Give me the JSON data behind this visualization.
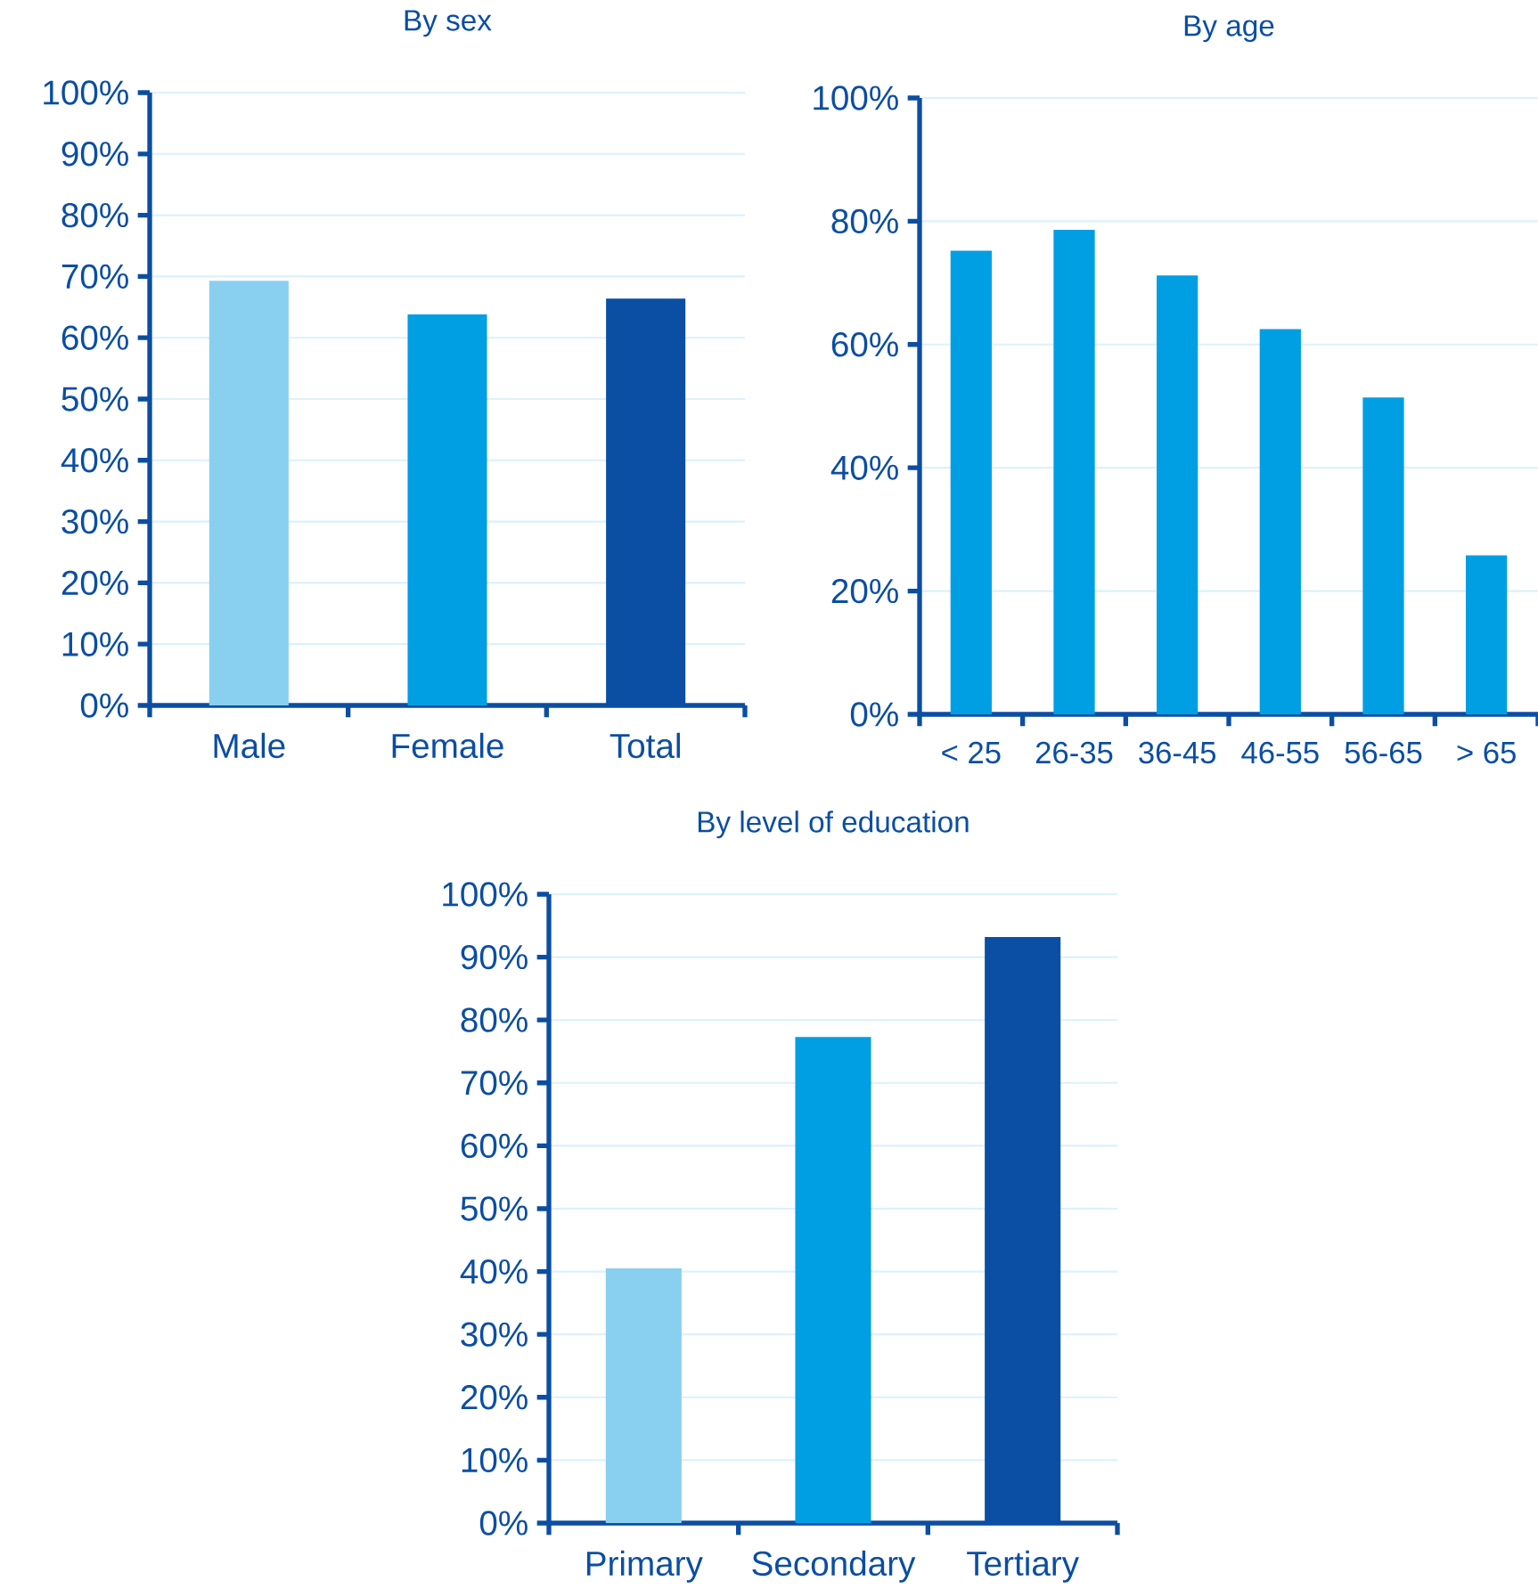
{
  "chart_data": [
    {
      "type": "bar",
      "title": "By sex",
      "categories": [
        "Male",
        "Female",
        "Total"
      ],
      "values": [
        69.3,
        63.8,
        66.4
      ],
      "colors": [
        "#89cff0",
        "#009fe3",
        "#0a4fa3"
      ],
      "ylim": [
        0,
        100
      ],
      "yticks": [
        {
          "value": 0,
          "label": "0%"
        },
        {
          "value": 10,
          "label": "10%"
        },
        {
          "value": 20,
          "label": "20%"
        },
        {
          "value": 30,
          "label": "30%"
        },
        {
          "value": 40,
          "label": "40%"
        },
        {
          "value": 50,
          "label": "50%"
        },
        {
          "value": 60,
          "label": "60%"
        },
        {
          "value": 70,
          "label": "70%"
        },
        {
          "value": 80,
          "label": "80%"
        },
        {
          "value": 90,
          "label": "90%"
        },
        {
          "value": 100,
          "label": "100%"
        }
      ],
      "grid": "y"
    },
    {
      "type": "bar",
      "title": "By age",
      "categories": [
        "< 25",
        "26-35",
        "36-45",
        "46-55",
        "56-65",
        "> 65"
      ],
      "values": [
        75.2,
        78.6,
        71.2,
        62.5,
        51.4,
        25.8
      ],
      "color": "#009fe3",
      "ylim": [
        0,
        100
      ],
      "yticks": [
        {
          "value": 0,
          "label": "0%"
        },
        {
          "value": 20,
          "label": "20%"
        },
        {
          "value": 40,
          "label": "40%"
        },
        {
          "value": 60,
          "label": "60%"
        },
        {
          "value": 80,
          "label": "80%"
        },
        {
          "value": 100,
          "label": "100%"
        }
      ],
      "grid": "y"
    },
    {
      "type": "bar",
      "title": "By level of education",
      "categories": [
        "Primary",
        "Secondary",
        "Tertiary"
      ],
      "values": [
        40.5,
        77.3,
        93.2
      ],
      "colors": [
        "#89cff0",
        "#009fe3",
        "#0a4fa3"
      ],
      "ylim": [
        0,
        100
      ],
      "yticks": [
        {
          "value": 0,
          "label": "0%"
        },
        {
          "value": 10,
          "label": "10%"
        },
        {
          "value": 20,
          "label": "20%"
        },
        {
          "value": 30,
          "label": "30%"
        },
        {
          "value": 40,
          "label": "40%"
        },
        {
          "value": 50,
          "label": "50%"
        },
        {
          "value": 60,
          "label": "60%"
        },
        {
          "value": 70,
          "label": "70%"
        },
        {
          "value": 80,
          "label": "80%"
        },
        {
          "value": 90,
          "label": "90%"
        },
        {
          "value": 100,
          "label": "100%"
        }
      ],
      "grid": "y"
    }
  ]
}
